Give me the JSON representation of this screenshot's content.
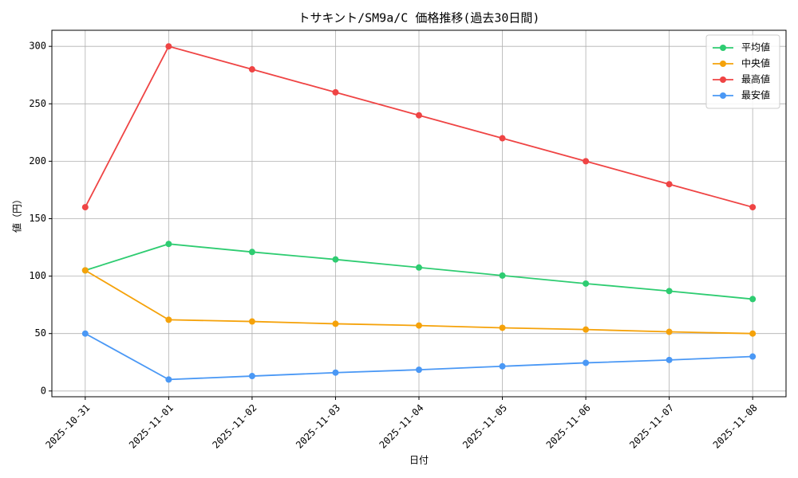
{
  "chart_data": {
    "type": "line",
    "title": "トサキント/SM9a/C 価格推移(過去30日間)",
    "x_label": "日付",
    "y_label": "値（円）",
    "categories": [
      "2025-10-31",
      "2025-11-01",
      "2025-11-02",
      "2025-11-03",
      "2025-11-04",
      "2025-11-05",
      "2025-11-06",
      "2025-11-07",
      "2025-11-08"
    ],
    "series": [
      {
        "name": "平均値",
        "color": "#2ecc71",
        "values": [
          105,
          128,
          121,
          114.5,
          107.5,
          100.5,
          93.5,
          87,
          80
        ]
      },
      {
        "name": "中央値",
        "color": "#f5a20a",
        "values": [
          105,
          62,
          60.5,
          58.5,
          57,
          55,
          53.5,
          51.5,
          50
        ]
      },
      {
        "name": "最高値",
        "color": "#ef4444",
        "values": [
          160,
          300,
          280,
          260,
          240,
          220,
          200,
          180,
          160
        ]
      },
      {
        "name": "最安値",
        "color": "#4a98f5",
        "values": [
          50,
          10,
          13,
          16,
          18.5,
          21.5,
          24.5,
          27,
          30
        ]
      }
    ],
    "ylim": [
      -5,
      314
    ],
    "yticks": [
      0,
      50,
      100,
      150,
      200,
      250,
      300
    ],
    "grid": true,
    "legend": "upper right"
  }
}
